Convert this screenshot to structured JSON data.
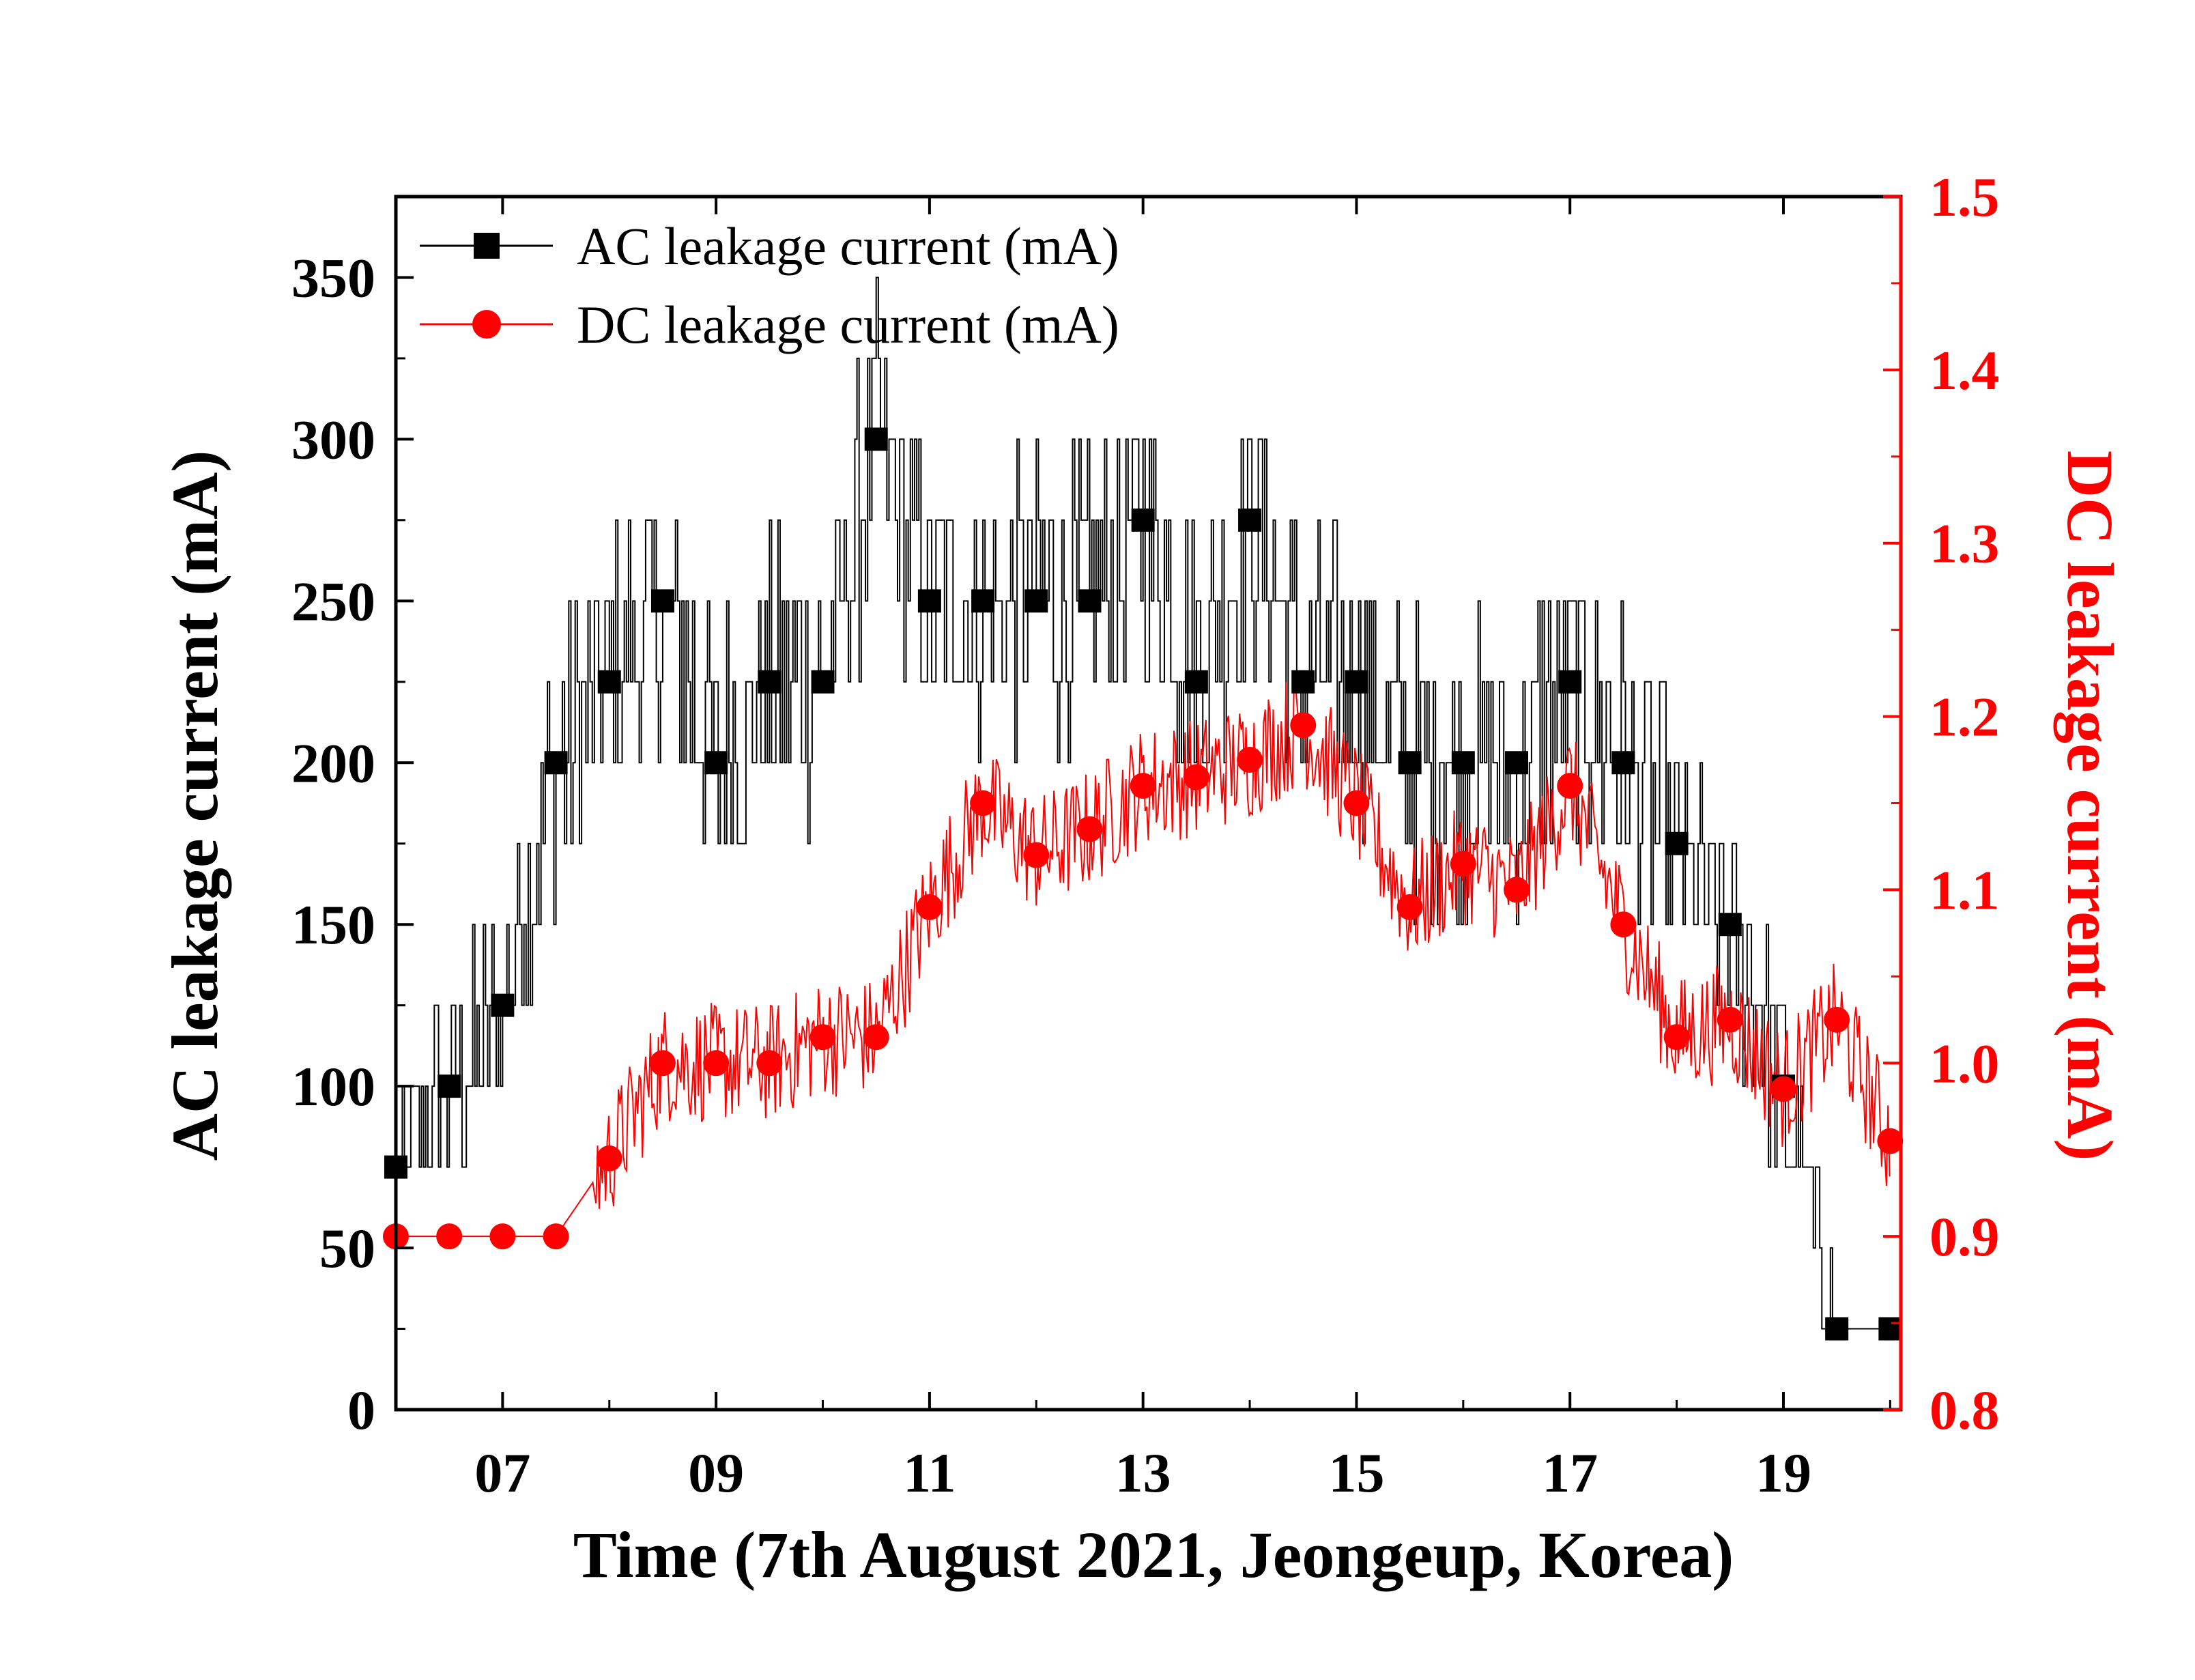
{
  "chart_data": {
    "type": "line",
    "xlabel": "Time (7th August 2021, Jeongeup, Korea)",
    "ylabel_left": "AC leakage current (mA)",
    "ylabel_right": "DC leakage current (mA)",
    "xlim": [
      6.0,
      20.1
    ],
    "ylim_left": [
      0,
      375
    ],
    "ylim_right": [
      0.8,
      1.5
    ],
    "x_ticks": [
      7,
      9,
      11,
      13,
      15,
      17,
      19
    ],
    "x_tick_labels": [
      "07",
      "09",
      "11",
      "13",
      "15",
      "17",
      "19"
    ],
    "y_left_ticks": [
      0,
      50,
      100,
      150,
      200,
      250,
      300,
      350
    ],
    "y_left_tick_labels": [
      "0",
      "50",
      "100",
      "150",
      "200",
      "250",
      "300",
      "350"
    ],
    "y_right_ticks": [
      0.8,
      0.9,
      1.0,
      1.1,
      1.2,
      1.3,
      1.4,
      1.5
    ],
    "y_right_tick_labels": [
      "0.8",
      "0.9",
      "1.0",
      "1.1",
      "1.2",
      "1.3",
      "1.4",
      "1.5"
    ],
    "legend_position": "top-left",
    "grid": false,
    "series": [
      {
        "name": "AC leakage current (mA)",
        "axis": "left",
        "color": "#000000",
        "marker": "square",
        "x": [
          6.0,
          6.5,
          7.0,
          7.5,
          8.0,
          8.5,
          9.0,
          9.5,
          10.0,
          10.5,
          11.0,
          11.5,
          12.0,
          12.5,
          13.0,
          13.5,
          14.0,
          14.5,
          15.0,
          15.5,
          16.0,
          16.5,
          17.0,
          17.5,
          18.0,
          18.5,
          19.0,
          19.5,
          20.0
        ],
        "values": [
          75,
          100,
          125,
          200,
          225,
          250,
          200,
          225,
          225,
          300,
          250,
          250,
          250,
          250,
          275,
          225,
          275,
          225,
          225,
          200,
          200,
          200,
          225,
          200,
          175,
          150,
          100,
          25,
          25
        ]
      },
      {
        "name": "DC leakage current (mA)",
        "axis": "right",
        "color": "#ff0000",
        "marker": "circle",
        "x": [
          6.0,
          6.5,
          7.0,
          7.5,
          8.0,
          8.5,
          9.0,
          9.5,
          10.0,
          10.5,
          11.0,
          11.5,
          12.0,
          12.5,
          13.0,
          13.5,
          14.0,
          14.5,
          15.0,
          15.5,
          16.0,
          16.5,
          17.0,
          17.5,
          18.0,
          18.5,
          19.0,
          19.5,
          20.0
        ],
        "values": [
          0.9,
          0.9,
          0.9,
          0.9,
          0.945,
          1.0,
          1.0,
          1.0,
          1.015,
          1.015,
          1.09,
          1.15,
          1.12,
          1.135,
          1.16,
          1.165,
          1.175,
          1.195,
          1.15,
          1.09,
          1.115,
          1.1,
          1.16,
          1.08,
          1.015,
          1.025,
          0.985,
          1.025,
          0.955
        ]
      }
    ]
  }
}
